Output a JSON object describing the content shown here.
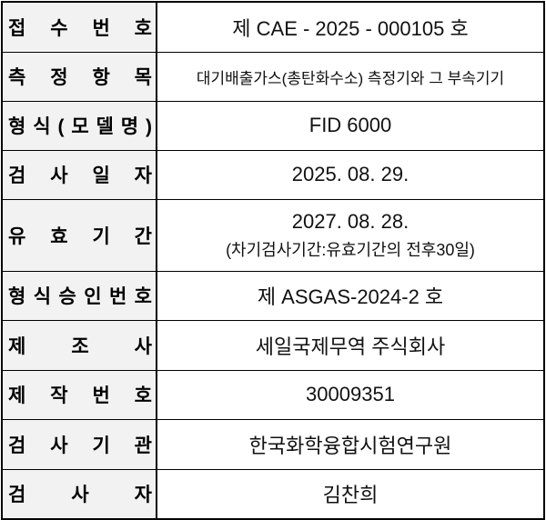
{
  "rows": [
    {
      "label": "접 수 번 호",
      "value": "제 CAE - 2025 - 000105 호"
    },
    {
      "label": "측 정 항 목",
      "value": "대기배출가스(총탄화수소) 측정기와 그 부속기기"
    },
    {
      "label": "형 식 ( 모 델 명 )",
      "value": "FID 6000"
    },
    {
      "label": "검 사 일 자",
      "value": "2025. 08. 29."
    },
    {
      "label": "유 효 기 간",
      "value": "2027. 08. 28.",
      "note": "(차기검사기간:유효기간의 전후30일)"
    },
    {
      "label": "형 식 승 인 번 호",
      "value": "제 ASGAS-2024-2 호"
    },
    {
      "label": "제 조 사",
      "value": "세일국제무역 주식회사"
    },
    {
      "label": "제 작 번 호",
      "value": "30009351"
    },
    {
      "label": "검 사 기 관",
      "value": "한국화학융합시험연구원"
    },
    {
      "label": "검 사 자",
      "value": "김찬희"
    }
  ]
}
